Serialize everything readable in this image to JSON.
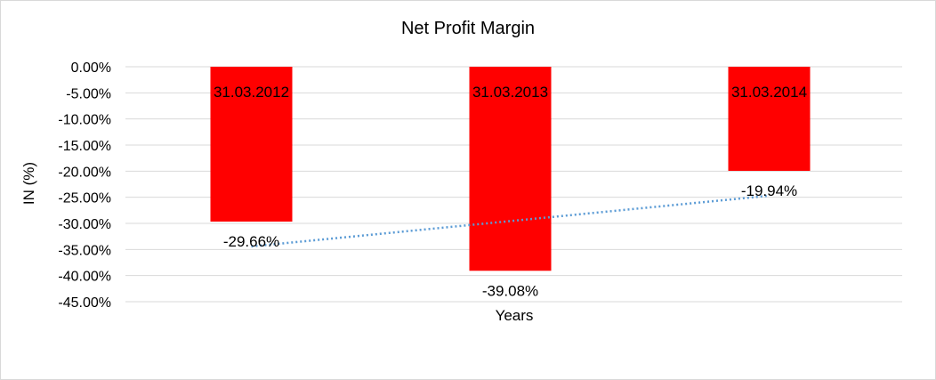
{
  "chart_data": {
    "type": "bar",
    "title": "Net Profit Margin",
    "xlabel": "Years",
    "ylabel": "IN (%)",
    "categories": [
      "31.03.2012",
      "31.03.2013",
      "31.03.2014"
    ],
    "values": [
      -29.66,
      -39.08,
      -19.94
    ],
    "data_labels": [
      "-29.66%",
      "-39.08%",
      "-19.94%"
    ],
    "ylim": [
      -45,
      0
    ],
    "y_ticks": [
      0,
      -5,
      -10,
      -15,
      -20,
      -25,
      -30,
      -35,
      -40,
      -45
    ],
    "y_tick_labels": [
      "0.00%",
      "-5.00%",
      "-10.00%",
      "-15.00%",
      "-20.00%",
      "-25.00%",
      "-30.00%",
      "-35.00%",
      "-40.00%",
      "-45.00%"
    ],
    "grid": true,
    "legend": "none",
    "trendline": {
      "type": "linear",
      "style": "dotted"
    },
    "colors": {
      "bar": "#ff0000",
      "trendline": "#5b9bd5",
      "grid": "#d9d9d9"
    }
  }
}
